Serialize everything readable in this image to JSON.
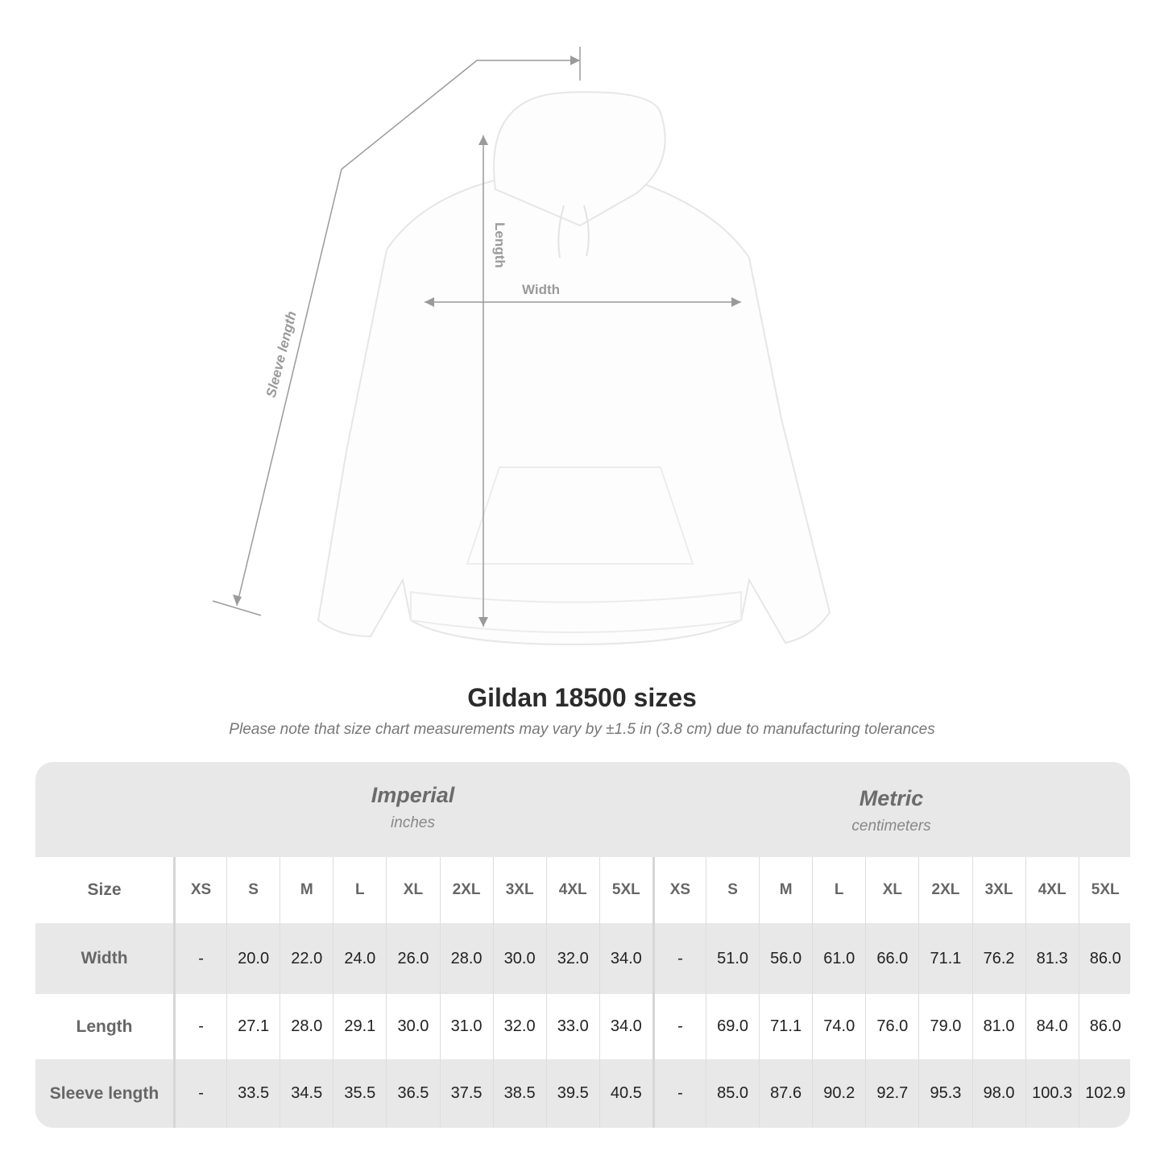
{
  "diagram": {
    "length_label": "Length",
    "width_label": "Width",
    "sleeve_label": "Sleeve length",
    "line_color": "#9a9a9a",
    "garment_color": "#ffffff"
  },
  "title": "Gildan 18500 sizes",
  "note": "Please note that size chart measurements may vary by ±1.5 in (3.8 cm) due to manufacturing tolerances",
  "systems": [
    {
      "name": "Imperial",
      "unit": "inches"
    },
    {
      "name": "Metric",
      "unit": "centimeters"
    }
  ],
  "table": {
    "size_header": "Size",
    "sizes": [
      "XS",
      "S",
      "M",
      "L",
      "XL",
      "2XL",
      "3XL",
      "4XL",
      "5XL"
    ],
    "rows": [
      {
        "label": "Width",
        "imperial": [
          "-",
          "20.0",
          "22.0",
          "24.0",
          "26.0",
          "28.0",
          "30.0",
          "32.0",
          "34.0"
        ],
        "metric": [
          "-",
          "51.0",
          "56.0",
          "61.0",
          "66.0",
          "71.1",
          "76.2",
          "81.3",
          "86.0"
        ]
      },
      {
        "label": "Length",
        "imperial": [
          "-",
          "27.1",
          "28.0",
          "29.1",
          "30.0",
          "31.0",
          "32.0",
          "33.0",
          "34.0"
        ],
        "metric": [
          "-",
          "69.0",
          "71.1",
          "74.0",
          "76.0",
          "79.0",
          "81.0",
          "84.0",
          "86.0"
        ]
      },
      {
        "label": "Sleeve length",
        "imperial": [
          "-",
          "33.5",
          "34.5",
          "35.5",
          "36.5",
          "37.5",
          "38.5",
          "39.5",
          "40.5"
        ],
        "metric": [
          "-",
          "85.0",
          "87.6",
          "90.2",
          "92.7",
          "95.3",
          "98.0",
          "100.3",
          "102.9"
        ]
      }
    ]
  }
}
